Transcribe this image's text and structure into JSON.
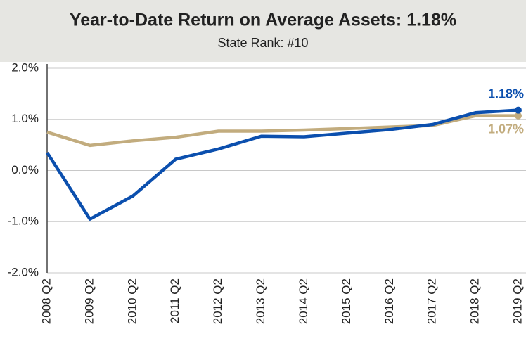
{
  "chart_data": {
    "type": "line",
    "title": "Year-to-Date Return on Average Assets: 1.18%",
    "subtitle": "State Rank: #10",
    "categories": [
      "2008 Q2",
      "2009 Q2",
      "2010 Q2",
      "2011 Q2",
      "2012 Q2",
      "2013 Q2",
      "2014 Q2",
      "2015 Q2",
      "2016 Q2",
      "2017 Q2",
      "2018 Q2",
      "2019 Q2"
    ],
    "series": [
      {
        "color": "#c2ac7e",
        "values": [
          0.75,
          0.49,
          0.58,
          0.65,
          0.77,
          0.77,
          0.79,
          0.82,
          0.85,
          0.88,
          1.07,
          1.07
        ],
        "value_labels": [
          null,
          null,
          null,
          null,
          null,
          null,
          null,
          null,
          null,
          null,
          null,
          "1.07%"
        ]
      },
      {
        "color": "#0b4fae",
        "values": [
          0.35,
          -0.95,
          -0.5,
          0.22,
          0.42,
          0.67,
          0.66,
          0.73,
          0.8,
          0.9,
          1.13,
          1.18
        ],
        "value_labels": [
          null,
          null,
          null,
          null,
          null,
          null,
          null,
          null,
          null,
          null,
          null,
          "1.18%"
        ]
      }
    ],
    "ylim": [
      -2,
      2
    ],
    "yticks": [
      {
        "value": -2,
        "label": "-2.0%"
      },
      {
        "value": -1,
        "label": "-1.0%"
      },
      {
        "value": 0,
        "label": "0.0%"
      },
      {
        "value": 1,
        "label": "1.0%"
      },
      {
        "value": 2,
        "label": "2.0%"
      }
    ],
    "grid": true
  }
}
